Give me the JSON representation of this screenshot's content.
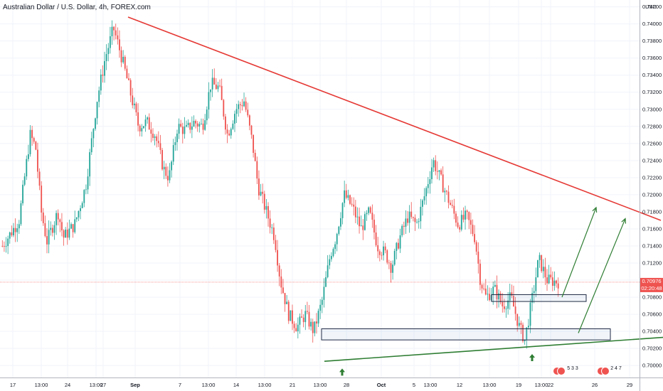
{
  "chart_data": {
    "type": "candlestick",
    "title": "Australian Dollar / U.S. Dollar, 4h, FOREX.com",
    "currency": "USD",
    "ylim": [
      0.6986,
      0.7428
    ],
    "y_ticks": [
      "0.70000",
      "0.70200",
      "0.70400",
      "0.70600",
      "0.70800",
      "0.71000",
      "0.71200",
      "0.71400",
      "0.71600",
      "0.71800",
      "0.72000",
      "0.72200",
      "0.72400",
      "0.72600",
      "0.72800",
      "0.73000",
      "0.73200",
      "0.73400",
      "0.73600",
      "0.73800",
      "0.74000",
      "0.74200"
    ],
    "x_ticks": [
      "17",
      "13:00",
      "24",
      "13:00",
      "27",
      "Sep",
      "7",
      "13:00",
      "14",
      "13:00",
      "21",
      "13:00",
      "28",
      "Oct",
      "5",
      "13:00",
      "12",
      "13:00",
      "19",
      "13:00",
      "22",
      "26",
      "29"
    ],
    "current_price": "0.70976",
    "countdown": "02:20:48",
    "colors": {
      "up": "#26a69a",
      "down": "#ef5350",
      "resistance": "#e53935",
      "support": "#2e7d32",
      "arrow": "#2e7d32",
      "zone": "#1f2a44"
    },
    "resistance_line": [
      [
        0,
        0.7408
      ],
      [
        1,
        0.717
      ]
    ],
    "support_line": [
      [
        0,
        0.7005
      ],
      [
        1,
        0.7033
      ]
    ],
    "zones": [
      {
        "from": 0.703,
        "to": 0.7043
      },
      {
        "from": 0.7075,
        "to": 0.7083
      }
    ],
    "path": [
      [
        0.0,
        0.714
      ],
      [
        0.03,
        0.717
      ],
      [
        0.05,
        0.727
      ],
      [
        0.06,
        0.7255
      ],
      [
        0.07,
        0.718
      ],
      [
        0.08,
        0.7145
      ],
      [
        0.1,
        0.718
      ],
      [
        0.11,
        0.715
      ],
      [
        0.13,
        0.7165
      ],
      [
        0.15,
        0.721
      ],
      [
        0.17,
        0.731
      ],
      [
        0.185,
        0.736
      ],
      [
        0.2,
        0.7395
      ],
      [
        0.215,
        0.736
      ],
      [
        0.23,
        0.732
      ],
      [
        0.245,
        0.728
      ],
      [
        0.26,
        0.7285
      ],
      [
        0.275,
        0.727
      ],
      [
        0.29,
        0.723
      ],
      [
        0.3,
        0.722
      ],
      [
        0.315,
        0.728
      ],
      [
        0.33,
        0.7275
      ],
      [
        0.345,
        0.7285
      ],
      [
        0.36,
        0.728
      ],
      [
        0.375,
        0.733
      ],
      [
        0.39,
        0.7325
      ],
      [
        0.405,
        0.727
      ],
      [
        0.42,
        0.73
      ],
      [
        0.435,
        0.731
      ],
      [
        0.45,
        0.726
      ],
      [
        0.46,
        0.721
      ],
      [
        0.475,
        0.718
      ],
      [
        0.49,
        0.715
      ],
      [
        0.5,
        0.71
      ],
      [
        0.515,
        0.706
      ],
      [
        0.53,
        0.7045
      ],
      [
        0.545,
        0.706
      ],
      [
        0.56,
        0.704
      ],
      [
        0.575,
        0.7075
      ],
      [
        0.59,
        0.713
      ],
      [
        0.6,
        0.715
      ],
      [
        0.615,
        0.72
      ],
      [
        0.63,
        0.7185
      ],
      [
        0.645,
        0.716
      ],
      [
        0.66,
        0.718
      ],
      [
        0.675,
        0.714
      ],
      [
        0.69,
        0.713
      ],
      [
        0.7,
        0.7115
      ],
      [
        0.715,
        0.715
      ],
      [
        0.73,
        0.7175
      ],
      [
        0.745,
        0.7165
      ],
      [
        0.76,
        0.72
      ],
      [
        0.775,
        0.724
      ],
      [
        0.79,
        0.7215
      ],
      [
        0.805,
        0.719
      ],
      [
        0.82,
        0.7165
      ],
      [
        0.835,
        0.7175
      ],
      [
        0.85,
        0.715
      ],
      [
        0.86,
        0.71
      ],
      [
        0.87,
        0.708
      ],
      [
        0.885,
        0.709
      ],
      [
        0.9,
        0.707
      ],
      [
        0.915,
        0.708
      ],
      [
        0.93,
        0.7045
      ],
      [
        0.94,
        0.703
      ],
      [
        0.955,
        0.7085
      ],
      [
        0.965,
        0.7125
      ],
      [
        0.98,
        0.71
      ],
      [
        1.0,
        0.7098
      ]
    ],
    "forecast_arrows": [
      [
        [
          0.0,
          0.708
        ],
        [
          1.0,
          0.7185
        ]
      ],
      [
        [
          0.0,
          0.7038
        ],
        [
          1.0,
          0.7172
        ]
      ]
    ],
    "event_badges": [
      {
        "label": "5 3 3"
      },
      {
        "label": "2 4 7"
      }
    ]
  }
}
